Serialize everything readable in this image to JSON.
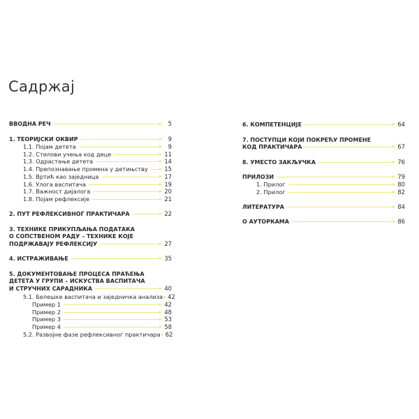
{
  "title": "Садржај",
  "left": [
    {
      "lines": [
        "ВВОДНА РЕЧ"
      ],
      "page": "5",
      "level": 0
    },
    {
      "lines": [
        "1. ТЕОРИЈСКИ ОКВИР"
      ],
      "page": "9",
      "level": 0
    },
    {
      "lines": [
        "1.1.  Појам детета"
      ],
      "page": "9",
      "level": 1
    },
    {
      "lines": [
        "1.2.  Стилови учења код деце"
      ],
      "page": "11",
      "level": 1
    },
    {
      "lines": [
        "1.3.  Одрастање детета"
      ],
      "page": "14",
      "level": 1
    },
    {
      "lines": [
        "1.4.  Препознавање промена у детињству"
      ],
      "page": "15",
      "level": 1
    },
    {
      "lines": [
        "1.5.  Вртић као заједница"
      ],
      "page": "17",
      "level": 1
    },
    {
      "lines": [
        "1.6.  Улога васпитача"
      ],
      "page": "19",
      "level": 1
    },
    {
      "lines": [
        "1.7.  Важност дијалога"
      ],
      "page": "20",
      "level": 1
    },
    {
      "lines": [
        "1.8.  Појам рефлексије"
      ],
      "page": "21",
      "level": 1
    },
    {
      "lines": [
        "2. ПУТ РЕФЛЕКСИВНОГ ПРАКТИЧАРА"
      ],
      "page": "22",
      "level": 0
    },
    {
      "lines": [
        "3. ТЕХНИКЕ ПРИКУПЉАЊА ПОДАТАКА",
        "О СОПСТВЕНОМ РАДУ – ТЕХНИКЕ КОЈЕ",
        "ПОДРЖАВАЈУ РЕФЛЕКСИЈУ"
      ],
      "page": "27",
      "level": 0
    },
    {
      "lines": [
        "4. ИСТРАЖИВАЊЕ"
      ],
      "page": "35",
      "level": 0
    },
    {
      "lines": [
        "5. ДОКУМЕНТОВАЊЕ ПРОЦЕСА ПРАЋЕЊА",
        "ДЕТЕТА У ГРУПИ – ИСКУСТВА ВАСПИТАЧА",
        "И СТРУЧНИХ САРАДНИКА"
      ],
      "page": "40",
      "level": 0
    },
    {
      "lines": [
        "5.1.  Белешке васпитача и заједничка анализа"
      ],
      "page": "42",
      "level": 1
    },
    {
      "lines": [
        "Пример 1"
      ],
      "page": "42",
      "level": 2
    },
    {
      "lines": [
        "Пример 2"
      ],
      "page": "48",
      "level": 2
    },
    {
      "lines": [
        "Пример 3"
      ],
      "page": "53",
      "level": 2
    },
    {
      "lines": [
        "Пример 4"
      ],
      "page": "58",
      "level": 2
    },
    {
      "lines": [
        "5.2.  Развојне фазе рефлексивног практичара"
      ],
      "page": "62",
      "level": 1
    }
  ],
  "right": [
    {
      "lines": [
        "6. КОМПЕТЕНЦИЈЕ"
      ],
      "page": "64",
      "level": 0
    },
    {
      "lines": [
        "7. ПОСТУПЦИ КОЈИ ПОКРЕЋУ ПРОМЕНЕ",
        "КОД ПРАКТИЧАРА"
      ],
      "page": "67",
      "level": 0
    },
    {
      "lines": [
        "8. УМЕСТО ЗАКЉУЧКА"
      ],
      "page": "76",
      "level": 0
    },
    {
      "lines": [
        "ПРИЛОЗИ"
      ],
      "page": "79",
      "level": 0
    },
    {
      "lines": [
        "1.  Прилог"
      ],
      "page": "80",
      "level": 1
    },
    {
      "lines": [
        "2.  Прилог"
      ],
      "page": "82",
      "level": 1
    },
    {
      "lines": [
        "ЛИТЕРАТУРА"
      ],
      "page": "84",
      "level": 0
    },
    {
      "lines": [
        "О АУТОРКАМА"
      ],
      "page": "86",
      "level": 0
    }
  ]
}
